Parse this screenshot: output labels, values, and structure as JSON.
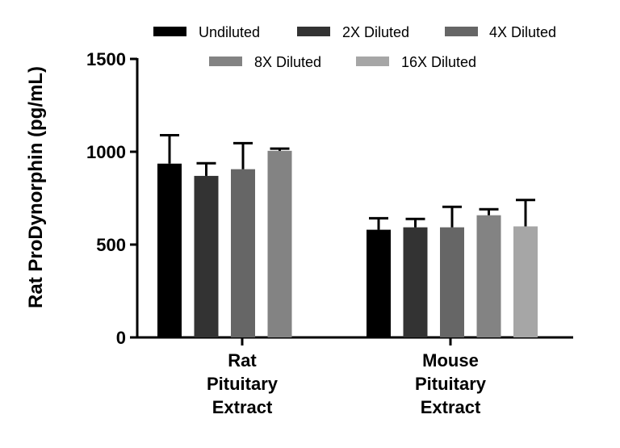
{
  "chart_data": {
    "type": "bar",
    "ylabel": "Rat ProDynorphin (pg/mL)",
    "ylim": [
      0,
      1500
    ],
    "y_ticks": [
      0,
      500,
      1000,
      1500
    ],
    "y_tick_labels": [
      "0",
      "500",
      "1000",
      "1500"
    ],
    "categories": [
      {
        "lines": [
          "Rat",
          "Pituitary",
          "Extract"
        ]
      },
      {
        "lines": [
          "Mouse",
          "Pituitary",
          "Extract"
        ]
      }
    ],
    "series": [
      {
        "name": "Undiluted",
        "color": "#000000",
        "values": [
          936,
          580
        ],
        "errors": [
          153,
          62
        ]
      },
      {
        "name": "2X Diluted",
        "color": "#333333",
        "values": [
          870,
          593
        ],
        "errors": [
          68,
          45
        ]
      },
      {
        "name": "4X Diluted",
        "color": "#666666",
        "values": [
          906,
          593
        ],
        "errors": [
          140,
          110
        ]
      },
      {
        "name": "8X Diluted",
        "color": "#838383",
        "values": [
          1005,
          658
        ],
        "errors": [
          12,
          32
        ]
      },
      {
        "name": "16X Diluted",
        "color": "#a6a6a6",
        "values": [
          0,
          598
        ],
        "errors": [
          0,
          142
        ]
      }
    ]
  }
}
